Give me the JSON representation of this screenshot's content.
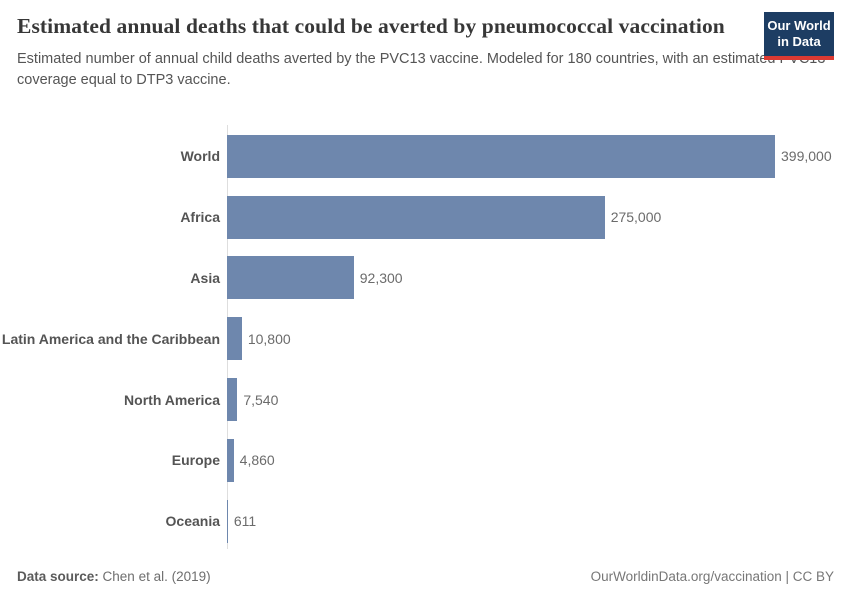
{
  "header": {
    "title": "Estimated annual deaths that could be averted by pneumococcal vaccination",
    "subtitle": "Estimated number of annual child deaths averted by the PVC13 vaccine. Modeled for 180 countries, with an estimated PVC13 coverage equal to DTP3 vaccine.",
    "logo_line1": "Our World",
    "logo_line2": "in Data"
  },
  "chart_data": {
    "type": "bar",
    "orientation": "horizontal",
    "title": "Estimated annual deaths that could be averted by pneumococcal vaccination",
    "categories": [
      "World",
      "Africa",
      "Asia",
      "Latin America and the Caribbean",
      "North America",
      "Europe",
      "Oceania"
    ],
    "values": [
      399000,
      275000,
      92300,
      10800,
      7540,
      4860,
      611
    ],
    "value_labels": [
      "399,000",
      "275,000",
      "92,300",
      "10,800",
      "7,540",
      "4,860",
      "611"
    ],
    "xlim": [
      0,
      399000
    ],
    "grid": false,
    "legend": "none",
    "bar_color": "#6e87ad"
  },
  "footer": {
    "source_label": "Data source:",
    "source_value": "Chen et al. (2019)",
    "credit": "OurWorldinData.org/vaccination | CC BY"
  },
  "colors": {
    "bar": "#6e87ad",
    "logo_bg": "#1d3d63",
    "logo_accent": "#dc3a32",
    "axis_line": "#dedede"
  }
}
